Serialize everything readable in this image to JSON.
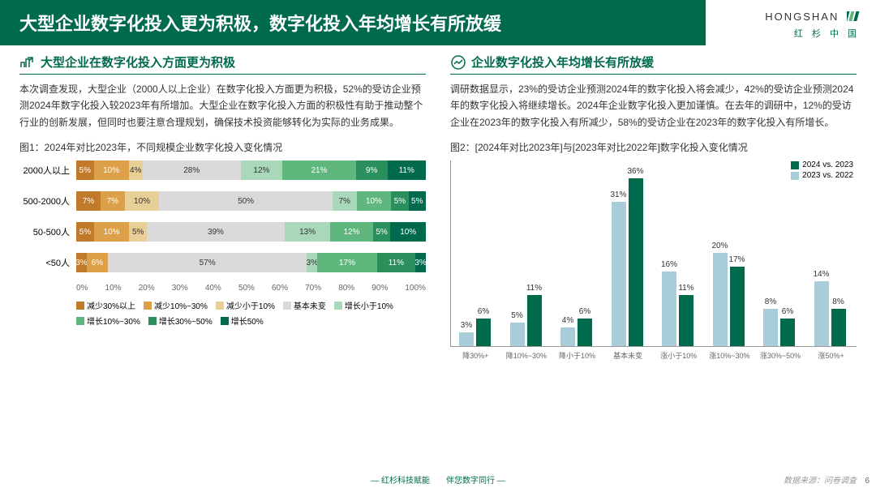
{
  "header": {
    "title": "大型企业数字化投入更为积极，数字化投入年均增长有所放缓"
  },
  "logo": {
    "main": "HONGSHAN",
    "sub": "红 杉 中 国"
  },
  "left": {
    "section_title": "大型企业在数字化投入方面更为积极",
    "body": "本次调查发现，大型企业（2000人以上企业）在数字化投入方面更为积极，52%的受访企业预测2024年数字化投入较2023年有所增加。大型企业在数字化投入方面的积极性有助于推动整个行业的创新发展，但同时也要注意合理规划，确保技术投资能够转化为实际的业务成果。",
    "chart_title": "图1：2024年对比2023年，不同规模企业数字化投入变化情况",
    "categories": [
      "2000人以上",
      "500-2000人",
      "50-500人",
      "<50人"
    ],
    "series_labels": [
      "减少30%以上",
      "减少10%~30%",
      "减少小于10%",
      "基本未变",
      "增长小于10%",
      "增长10%~30%",
      "增长30%~50%",
      "增长50%"
    ],
    "series_colors": [
      "#c07a2a",
      "#dba048",
      "#e8cf97",
      "#d9d9d9",
      "#a8d8b9",
      "#5fb77e",
      "#2a8f5c",
      "#006a4d"
    ],
    "series_textdark": [
      false,
      false,
      true,
      true,
      true,
      false,
      false,
      false
    ],
    "data": [
      [
        5,
        10,
        4,
        28,
        12,
        21,
        9,
        11
      ],
      [
        7,
        7,
        10,
        50,
        7,
        10,
        5,
        5
      ],
      [
        5,
        10,
        5,
        39,
        13,
        12,
        5,
        10
      ],
      [
        3,
        6,
        0,
        57,
        3,
        17,
        11,
        3
      ]
    ],
    "xaxis": [
      "0%",
      "10%",
      "20%",
      "30%",
      "40%",
      "50%",
      "60%",
      "70%",
      "80%",
      "90%",
      "100%"
    ]
  },
  "right": {
    "section_title": "企业数字化投入年均增长有所放缓",
    "body": "调研数据显示，23%的受访企业预测2024年的数字化投入将会减少，42%的受访企业预测2024年的数字化投入将继续增长。2024年企业数字化投入更加谨慎。在去年的调研中，12%的受访企业在2023年的数字化投入有所减少，58%的受访企业在2023年的数字化投入有所增长。",
    "chart_title": "图2：[2024年对比2023年]与[2023年对比2022年]数字化投入变化情况",
    "legend": [
      "2024 vs. 2023",
      "2023 vs. 2022"
    ],
    "legend_colors": [
      "#006a4d",
      "#a8ccd8"
    ],
    "categories": [
      "降30%+",
      "降10%~30%",
      "降小于10%",
      "基本未变",
      "涨小于10%",
      "涨10%~30%",
      "涨30%~50%",
      "涨50%+"
    ],
    "y_max": 40,
    "series": [
      {
        "color": "#a8ccd8",
        "values": [
          3,
          5,
          4,
          31,
          16,
          20,
          8,
          14
        ]
      },
      {
        "color": "#006a4d",
        "values": [
          6,
          11,
          6,
          36,
          11,
          17,
          6,
          8
        ]
      }
    ]
  },
  "footer": {
    "center": "— 红杉科技赋能　　伴您数字同行 —",
    "right": "数据来源：问卷调查",
    "page": "6"
  }
}
